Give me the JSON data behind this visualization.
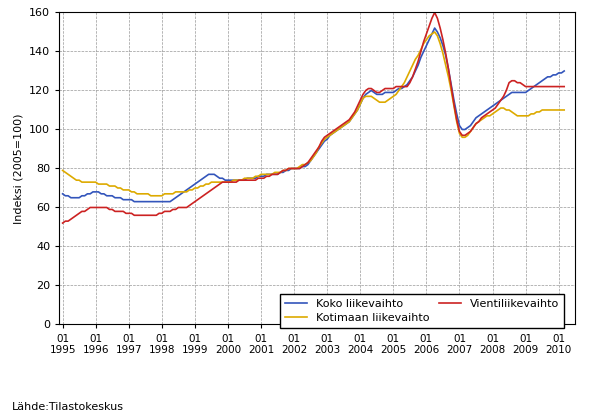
{
  "ylabel": "Indeksi (2005=100)",
  "source_text": "Lähde:Tilastokeskus",
  "legend_entries": [
    "Koko liikevaihto",
    "Kotimaan liikevaihto",
    "Vientiliikevaihto"
  ],
  "line_colors": [
    "#3355bb",
    "#ddaa00",
    "#cc2222"
  ],
  "ylim": [
    0,
    160
  ],
  "yticks": [
    0,
    20,
    40,
    60,
    80,
    100,
    120,
    140,
    160
  ],
  "koko": [
    67,
    66,
    66,
    65,
    65,
    65,
    65,
    66,
    66,
    67,
    67,
    68,
    68,
    68,
    67,
    67,
    66,
    66,
    66,
    65,
    65,
    65,
    64,
    64,
    64,
    64,
    63,
    63,
    63,
    63,
    63,
    63,
    63,
    63,
    63,
    63,
    63,
    63,
    63,
    63,
    64,
    65,
    66,
    67,
    68,
    69,
    70,
    71,
    72,
    73,
    74,
    75,
    76,
    77,
    77,
    77,
    76,
    75,
    75,
    74,
    74,
    74,
    74,
    74,
    74,
    74,
    74,
    75,
    75,
    75,
    75,
    76,
    76,
    76,
    77,
    77,
    77,
    77,
    77,
    78,
    78,
    79,
    79,
    80,
    80,
    80,
    80,
    81,
    81,
    82,
    84,
    86,
    88,
    90,
    92,
    94,
    95,
    97,
    98,
    99,
    100,
    101,
    102,
    103,
    104,
    106,
    108,
    110,
    113,
    116,
    118,
    119,
    120,
    119,
    118,
    118,
    118,
    119,
    119,
    119,
    119,
    120,
    121,
    121,
    122,
    123,
    125,
    127,
    130,
    133,
    137,
    140,
    143,
    146,
    149,
    152,
    150,
    147,
    143,
    138,
    131,
    123,
    115,
    108,
    102,
    100,
    100,
    101,
    102,
    104,
    106,
    107,
    108,
    109,
    110,
    111,
    112,
    113,
    114,
    115,
    116,
    117,
    118,
    119,
    119,
    119,
    119,
    119,
    119,
    120,
    121,
    122,
    123,
    124,
    125,
    126,
    127,
    127,
    128,
    128,
    129,
    129,
    130
  ],
  "kotimaan": [
    79,
    78,
    77,
    76,
    75,
    74,
    74,
    73,
    73,
    73,
    73,
    73,
    73,
    72,
    72,
    72,
    72,
    71,
    71,
    71,
    70,
    70,
    69,
    69,
    69,
    68,
    68,
    67,
    67,
    67,
    67,
    67,
    66,
    66,
    66,
    66,
    66,
    67,
    67,
    67,
    67,
    68,
    68,
    68,
    68,
    68,
    69,
    69,
    70,
    70,
    71,
    71,
    72,
    72,
    73,
    73,
    73,
    73,
    73,
    73,
    73,
    73,
    74,
    74,
    74,
    74,
    75,
    75,
    75,
    75,
    76,
    76,
    77,
    77,
    77,
    77,
    77,
    78,
    78,
    78,
    79,
    79,
    80,
    80,
    80,
    80,
    81,
    82,
    82,
    83,
    84,
    86,
    88,
    91,
    93,
    95,
    96,
    97,
    98,
    99,
    100,
    101,
    102,
    103,
    104,
    106,
    108,
    110,
    113,
    116,
    117,
    117,
    117,
    116,
    115,
    114,
    114,
    114,
    115,
    116,
    117,
    118,
    120,
    122,
    124,
    127,
    130,
    133,
    136,
    138,
    141,
    144,
    146,
    148,
    149,
    150,
    148,
    144,
    139,
    133,
    127,
    120,
    112,
    104,
    98,
    96,
    96,
    97,
    99,
    101,
    103,
    104,
    105,
    106,
    107,
    107,
    108,
    109,
    110,
    111,
    111,
    110,
    110,
    109,
    108,
    107,
    107,
    107,
    107,
    107,
    108,
    108,
    109,
    109,
    110,
    110,
    110,
    110,
    110,
    110,
    110,
    110,
    110
  ],
  "vienti": [
    52,
    53,
    53,
    54,
    55,
    56,
    57,
    58,
    58,
    59,
    60,
    60,
    60,
    60,
    60,
    60,
    60,
    59,
    59,
    58,
    58,
    58,
    58,
    57,
    57,
    57,
    56,
    56,
    56,
    56,
    56,
    56,
    56,
    56,
    56,
    57,
    57,
    58,
    58,
    58,
    59,
    59,
    60,
    60,
    60,
    60,
    61,
    62,
    63,
    64,
    65,
    66,
    67,
    68,
    69,
    70,
    71,
    72,
    73,
    73,
    73,
    73,
    73,
    73,
    74,
    74,
    74,
    74,
    74,
    74,
    74,
    75,
    75,
    75,
    76,
    76,
    77,
    77,
    77,
    78,
    79,
    79,
    80,
    80,
    80,
    80,
    80,
    81,
    82,
    83,
    85,
    87,
    89,
    91,
    94,
    96,
    97,
    98,
    99,
    100,
    101,
    102,
    103,
    104,
    105,
    107,
    109,
    112,
    115,
    118,
    120,
    121,
    121,
    120,
    119,
    119,
    120,
    121,
    121,
    121,
    121,
    122,
    122,
    122,
    122,
    122,
    124,
    127,
    131,
    135,
    140,
    145,
    149,
    153,
    157,
    160,
    157,
    152,
    146,
    139,
    131,
    122,
    113,
    105,
    99,
    97,
    97,
    98,
    99,
    101,
    103,
    104,
    106,
    107,
    108,
    109,
    110,
    111,
    113,
    115,
    117,
    120,
    124,
    125,
    125,
    124,
    124,
    123,
    122,
    122,
    122,
    122,
    122,
    122,
    122,
    122,
    122,
    122,
    122,
    122,
    122,
    122,
    122
  ],
  "n_months": 183,
  "start_year": 1995,
  "start_month": 1,
  "x_year_ticks": [
    1995,
    1996,
    1997,
    1998,
    1999,
    2000,
    2001,
    2002,
    2003,
    2004,
    2005,
    2006,
    2007,
    2008,
    2009,
    2010
  ]
}
